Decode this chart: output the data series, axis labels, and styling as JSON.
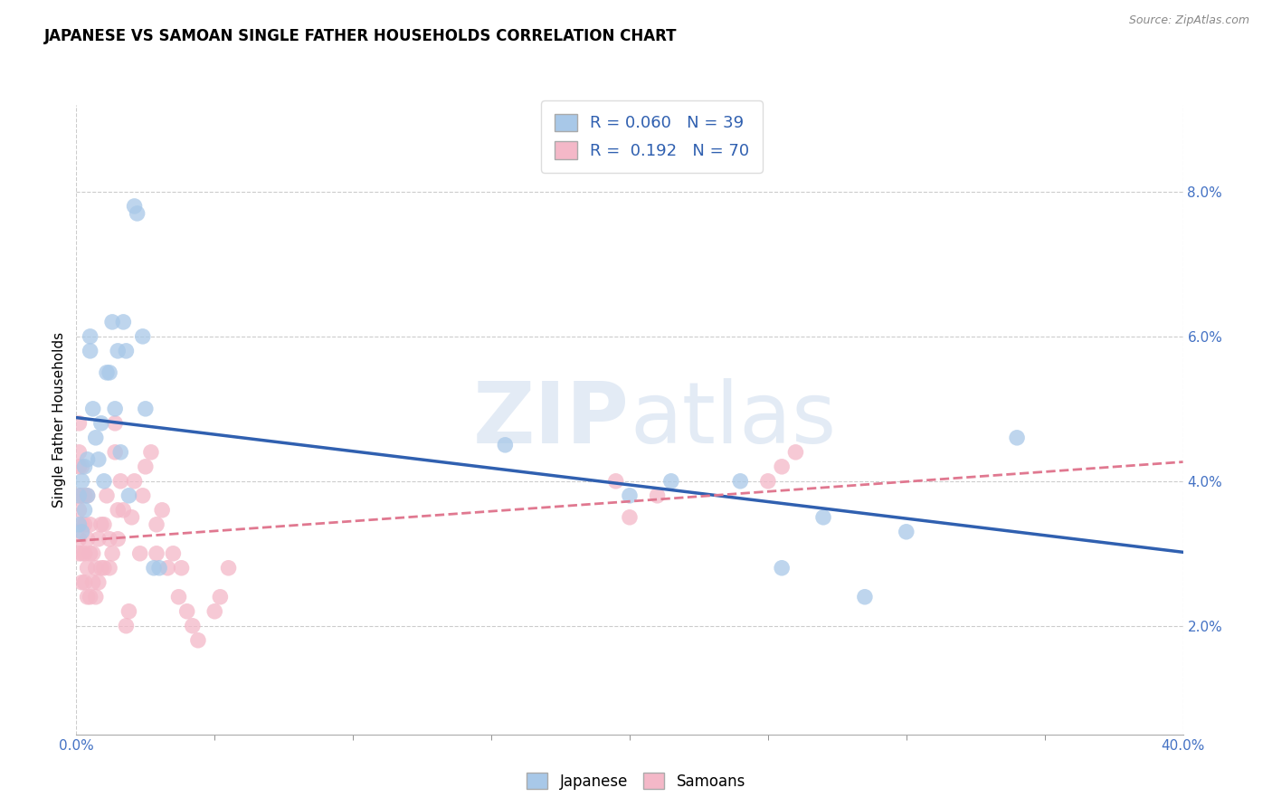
{
  "title": "JAPANESE VS SAMOAN SINGLE FATHER HOUSEHOLDS CORRELATION CHART",
  "source": "Source: ZipAtlas.com",
  "ylabel": "Single Father Households",
  "xlim": [
    0.0,
    0.4
  ],
  "ylim": [
    0.005,
    0.092
  ],
  "xticks": [
    0.0,
    0.4
  ],
  "yticks": [
    0.02,
    0.04,
    0.06,
    0.08
  ],
  "japanese_color": "#a8c8e8",
  "samoan_color": "#f4b8c8",
  "japanese_line_color": "#3060b0",
  "samoan_line_color": "#e07890",
  "legend_R_japanese": "0.060",
  "legend_N_japanese": "39",
  "legend_R_samoan": "0.192",
  "legend_N_samoan": "70",
  "japanese_x": [
    0.001,
    0.001,
    0.002,
    0.002,
    0.003,
    0.003,
    0.004,
    0.004,
    0.005,
    0.005,
    0.006,
    0.007,
    0.008,
    0.009,
    0.01,
    0.011,
    0.012,
    0.013,
    0.014,
    0.015,
    0.016,
    0.017,
    0.018,
    0.019,
    0.021,
    0.022,
    0.024,
    0.025,
    0.028,
    0.03,
    0.155,
    0.2,
    0.215,
    0.24,
    0.255,
    0.27,
    0.285,
    0.3,
    0.34
  ],
  "japanese_y": [
    0.034,
    0.038,
    0.033,
    0.04,
    0.036,
    0.042,
    0.038,
    0.043,
    0.06,
    0.058,
    0.05,
    0.046,
    0.043,
    0.048,
    0.04,
    0.055,
    0.055,
    0.062,
    0.05,
    0.058,
    0.044,
    0.062,
    0.058,
    0.038,
    0.078,
    0.077,
    0.06,
    0.05,
    0.028,
    0.028,
    0.045,
    0.038,
    0.04,
    0.04,
    0.028,
    0.035,
    0.024,
    0.033,
    0.046
  ],
  "samoan_x": [
    0.001,
    0.001,
    0.001,
    0.001,
    0.001,
    0.001,
    0.001,
    0.002,
    0.002,
    0.002,
    0.002,
    0.002,
    0.003,
    0.003,
    0.003,
    0.003,
    0.004,
    0.004,
    0.004,
    0.004,
    0.005,
    0.005,
    0.005,
    0.006,
    0.006,
    0.007,
    0.007,
    0.008,
    0.008,
    0.009,
    0.009,
    0.01,
    0.01,
    0.011,
    0.012,
    0.012,
    0.013,
    0.014,
    0.014,
    0.015,
    0.015,
    0.016,
    0.017,
    0.018,
    0.019,
    0.02,
    0.021,
    0.023,
    0.024,
    0.025,
    0.027,
    0.029,
    0.029,
    0.031,
    0.033,
    0.035,
    0.037,
    0.038,
    0.04,
    0.042,
    0.044,
    0.05,
    0.052,
    0.055,
    0.195,
    0.2,
    0.21,
    0.25,
    0.255,
    0.26
  ],
  "samoan_y": [
    0.03,
    0.032,
    0.036,
    0.038,
    0.042,
    0.044,
    0.048,
    0.026,
    0.03,
    0.034,
    0.038,
    0.042,
    0.026,
    0.03,
    0.034,
    0.038,
    0.024,
    0.028,
    0.032,
    0.038,
    0.024,
    0.03,
    0.034,
    0.026,
    0.03,
    0.024,
    0.028,
    0.026,
    0.032,
    0.028,
    0.034,
    0.028,
    0.034,
    0.038,
    0.028,
    0.032,
    0.03,
    0.044,
    0.048,
    0.032,
    0.036,
    0.04,
    0.036,
    0.02,
    0.022,
    0.035,
    0.04,
    0.03,
    0.038,
    0.042,
    0.044,
    0.03,
    0.034,
    0.036,
    0.028,
    0.03,
    0.024,
    0.028,
    0.022,
    0.02,
    0.018,
    0.022,
    0.024,
    0.028,
    0.04,
    0.035,
    0.038,
    0.04,
    0.042,
    0.044
  ],
  "watermark_zip": "ZIP",
  "watermark_atlas": "atlas",
  "background_color": "#ffffff",
  "grid_color": "#cccccc"
}
